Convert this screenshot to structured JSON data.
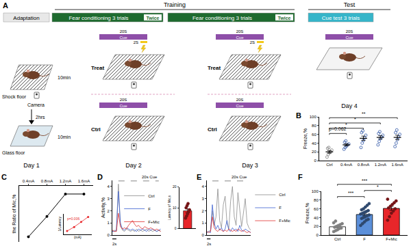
{
  "diagram": {
    "panel": "A",
    "headers": [
      "Training",
      "Test"
    ],
    "phases": [
      {
        "text": "Adaptation"
      },
      {
        "text": "Fear conditioning 3 trials",
        "tag": "Twice"
      },
      {
        "text": "Fear conditioning 3 trials",
        "tag": "Twice"
      },
      {
        "text": "Cue test 3 trials"
      }
    ],
    "day1": {
      "shock_floor": "Shock floor",
      "camera": "Camera",
      "time_shock": "10min",
      "interval": "2hrs",
      "glass_floor": "Glass floor",
      "time_glass": "10min"
    },
    "cue": {
      "duration": "20S",
      "label": "Cue",
      "shock": "2S"
    },
    "groups": [
      "Treat",
      "Ctrl"
    ],
    "days": [
      "Day 1",
      "Day 2",
      "Day 3",
      "Day 4"
    ]
  },
  "chart_data": [
    {
      "panel": "B",
      "type": "dot",
      "categories": [
        "Ctrl",
        "0.4mA",
        "0.8mA",
        "1.2mA",
        "1.6mA"
      ],
      "points": [
        [
          8,
          14,
          18,
          20,
          24,
          28,
          30
        ],
        [
          26,
          30,
          33,
          36,
          38,
          42,
          45
        ],
        [
          30,
          40,
          46,
          52,
          58,
          64,
          68
        ],
        [
          36,
          44,
          50,
          54,
          58,
          62,
          66
        ],
        [
          32,
          40,
          48,
          54,
          60,
          64,
          70
        ]
      ],
      "means": [
        20,
        36,
        51,
        53,
        53
      ],
      "errors": [
        3,
        2.5,
        5,
        4,
        5
      ],
      "colors": [
        "#7f7f7f",
        "#2f56a6",
        "#2f56a6",
        "#2f56a6",
        "#2f56a6"
      ],
      "marker": "circle-open",
      "y_label": "Freeze,%",
      "ylim": [
        0,
        100
      ],
      "yticks": [
        0,
        20,
        40,
        60,
        80,
        100
      ],
      "comparisons": [
        {
          "from": "Ctrl",
          "to": "0.4mA",
          "text": "p=0.062"
        },
        {
          "from": "Ctrl",
          "to": "0.8mA",
          "text": "*"
        },
        {
          "from": "Ctrl",
          "to": "1.2mA",
          "text": "*"
        },
        {
          "from": "Ctrl",
          "to": "1.6mA",
          "text": "**"
        }
      ]
    },
    {
      "panel": "C",
      "type": "line",
      "x": [
        0.4,
        0.8,
        1.2,
        1.6
      ],
      "values": [
        0,
        20,
        42,
        42
      ],
      "xlim": [
        0.2,
        1.8
      ],
      "xticks": [
        {
          "value": 0.4,
          "label": "0.4mA"
        },
        {
          "value": 0.8,
          "label": "0.8mA"
        },
        {
          "value": 1.2,
          "label": "1.2mA"
        },
        {
          "value": 1.6,
          "label": "1.6mA"
        }
      ],
      "ylim": [
        -5,
        50
      ],
      "y_label": "the Ratio of Mic,%",
      "tick_labels": "x",
      "color": "#000000",
      "marker": "circle",
      "inset": {
        "type": "scatter",
        "x": [
          0.4,
          0.8,
          1.2,
          1.6
        ],
        "values": [
          0.15,
          0.35,
          0.6,
          0.85
        ],
        "xlim": [
          0.2,
          1.8
        ],
        "ylim": [
          0,
          1
        ],
        "x_label": "(mA)",
        "y_label": "1/Latency",
        "annotation": "p=0.006",
        "color": "#e8262a",
        "marker": "circle",
        "tick_labels": false
      }
    },
    {
      "panel": "D",
      "type": "line",
      "x": [
        0,
        1,
        2,
        3,
        4,
        5,
        6,
        7,
        8,
        9,
        10,
        11,
        12,
        13,
        14,
        15,
        16,
        17,
        18,
        19,
        20,
        21,
        22,
        23,
        24
      ],
      "series": [
        {
          "name": "Ctrl",
          "color": "#8c8c8c",
          "values": [
            0.3,
            0.4,
            0.3,
            4.2,
            0.8,
            0.4,
            0.3,
            0.5,
            0.4,
            0.3,
            0.4,
            0.3,
            0.5,
            0.3,
            0.4,
            0.3,
            0.4,
            0.5,
            0.3,
            0.4,
            0.3,
            0.4,
            0.3,
            0.4,
            0.3
          ]
        },
        {
          "name": "F",
          "color": "#3b5fd0",
          "values": [
            0.3,
            0.3,
            0.4,
            3.6,
            1.0,
            0.5,
            0.4,
            0.6,
            0.5,
            0.4,
            0.5,
            0.4,
            0.3,
            0.5,
            0.4,
            0.5,
            0.4,
            0.3,
            0.5,
            0.4,
            0.5,
            0.4,
            0.3,
            0.4,
            0.5
          ]
        },
        {
          "name": "F+Mic",
          "color": "#e0302f",
          "values": [
            0.4,
            0.3,
            0.3,
            1.8,
            0.7,
            0.5,
            0.6,
            0.5,
            0.8,
            1.0,
            1.2,
            0.9,
            0.7,
            0.8,
            0.6,
            0.5,
            0.7,
            0.6,
            0.5,
            0.6,
            0.5,
            0.4,
            0.5,
            0.4,
            0.3
          ]
        }
      ],
      "xlim": [
        0,
        24
      ],
      "ylim": [
        0,
        4.5
      ],
      "yticks": [
        0,
        1,
        2,
        3,
        4
      ],
      "y_label": "Activity,%",
      "tick_labels": "y",
      "legend": "top",
      "cue": {
        "start": 3,
        "end": 23,
        "label": "20s Cue"
      },
      "scale_bar": {
        "length": 2,
        "label": "2s"
      },
      "inset": {
        "type": "bar",
        "categories": [
          null
        ],
        "values": [
          8.5
        ],
        "errors": [
          0.9
        ],
        "points": [
          [
            5,
            6,
            7,
            8,
            9,
            10,
            11,
            12
          ]
        ],
        "ylim": [
          0,
          20
        ],
        "yticks": [
          0,
          10,
          20
        ],
        "y_label": "Latency of Mic,s",
        "color": "#e8262a"
      }
    },
    {
      "panel": "E",
      "type": "line",
      "x": [
        0,
        1,
        2,
        3,
        4,
        5,
        6,
        7,
        8,
        9,
        10,
        11,
        12,
        13,
        14,
        15,
        16,
        17,
        18,
        19,
        20,
        21,
        22,
        23,
        24
      ],
      "series": [
        {
          "name": "Ctrl",
          "color": "#8c8c8c",
          "values": [
            0.2,
            0.3,
            0.4,
            2.0,
            0.8,
            1.5,
            3.8,
            1.2,
            0.6,
            2.5,
            3.2,
            1.0,
            0.5,
            2.8,
            4.0,
            1.5,
            0.8,
            3.5,
            2.0,
            0.7,
            1.8,
            3.0,
            1.0,
            0.6,
            0.4
          ]
        },
        {
          "name": "F",
          "color": "#3b5fd0",
          "values": [
            0.2,
            0.3,
            0.2,
            2.5,
            1.0,
            0.5,
            0.8,
            0.4,
            0.6,
            0.3,
            0.5,
            1.2,
            0.4,
            0.3,
            0.6,
            0.4,
            0.5,
            0.3,
            0.8,
            0.4,
            0.3,
            0.5,
            0.4,
            0.3,
            0.2
          ]
        },
        {
          "name": "F+Mic",
          "color": "#e0302f",
          "values": [
            0.3,
            0.2,
            0.3,
            1.5,
            0.6,
            0.4,
            0.3,
            0.5,
            0.4,
            0.3,
            0.4,
            0.3,
            0.5,
            0.4,
            0.3,
            0.4,
            0.3,
            0.5,
            0.4,
            0.3,
            0.4,
            0.3,
            0.2,
            0.3,
            0.2
          ]
        }
      ],
      "xlim": [
        0,
        24
      ],
      "ylim": [
        0,
        4.5
      ],
      "yticks": [
        0,
        1,
        2,
        3,
        4
      ],
      "tick_labels": "y",
      "legend": "right",
      "cue": {
        "start": 3,
        "end": 23,
        "label": "20s Cue"
      },
      "scale_bar": {
        "length": 2,
        "label": "2s"
      }
    },
    {
      "panel": "F",
      "type": "bar",
      "categories": [
        "Ctrl",
        "F",
        "F+Mic"
      ],
      "values": [
        19,
        47,
        61
      ],
      "errors": [
        2,
        3,
        4.5
      ],
      "points": [
        [
          8,
          10,
          12,
          15,
          16,
          18,
          20,
          22,
          24,
          26,
          28,
          32
        ],
        [
          22,
          26,
          30,
          34,
          36,
          38,
          40,
          42,
          44,
          46,
          48,
          50,
          52,
          54,
          56,
          58,
          60,
          64,
          68,
          72
        ],
        [
          34,
          42,
          50,
          55,
          60,
          62,
          66,
          70,
          74,
          78,
          82
        ]
      ],
      "colors": [
        "#ffffff",
        "#5b8fd9",
        "#e8262a"
      ],
      "marker": "circle",
      "y_label": "Freeze,%",
      "ylim": [
        0,
        100
      ],
      "yticks": [
        0,
        20,
        40,
        60,
        80,
        100
      ],
      "comparisons": [
        {
          "from": "Ctrl",
          "to": "F",
          "text": "***"
        },
        {
          "from": "F",
          "to": "F+Mic",
          "text": "*"
        },
        {
          "from": "Ctrl",
          "to": "F+Mic",
          "text": "***"
        }
      ]
    }
  ]
}
